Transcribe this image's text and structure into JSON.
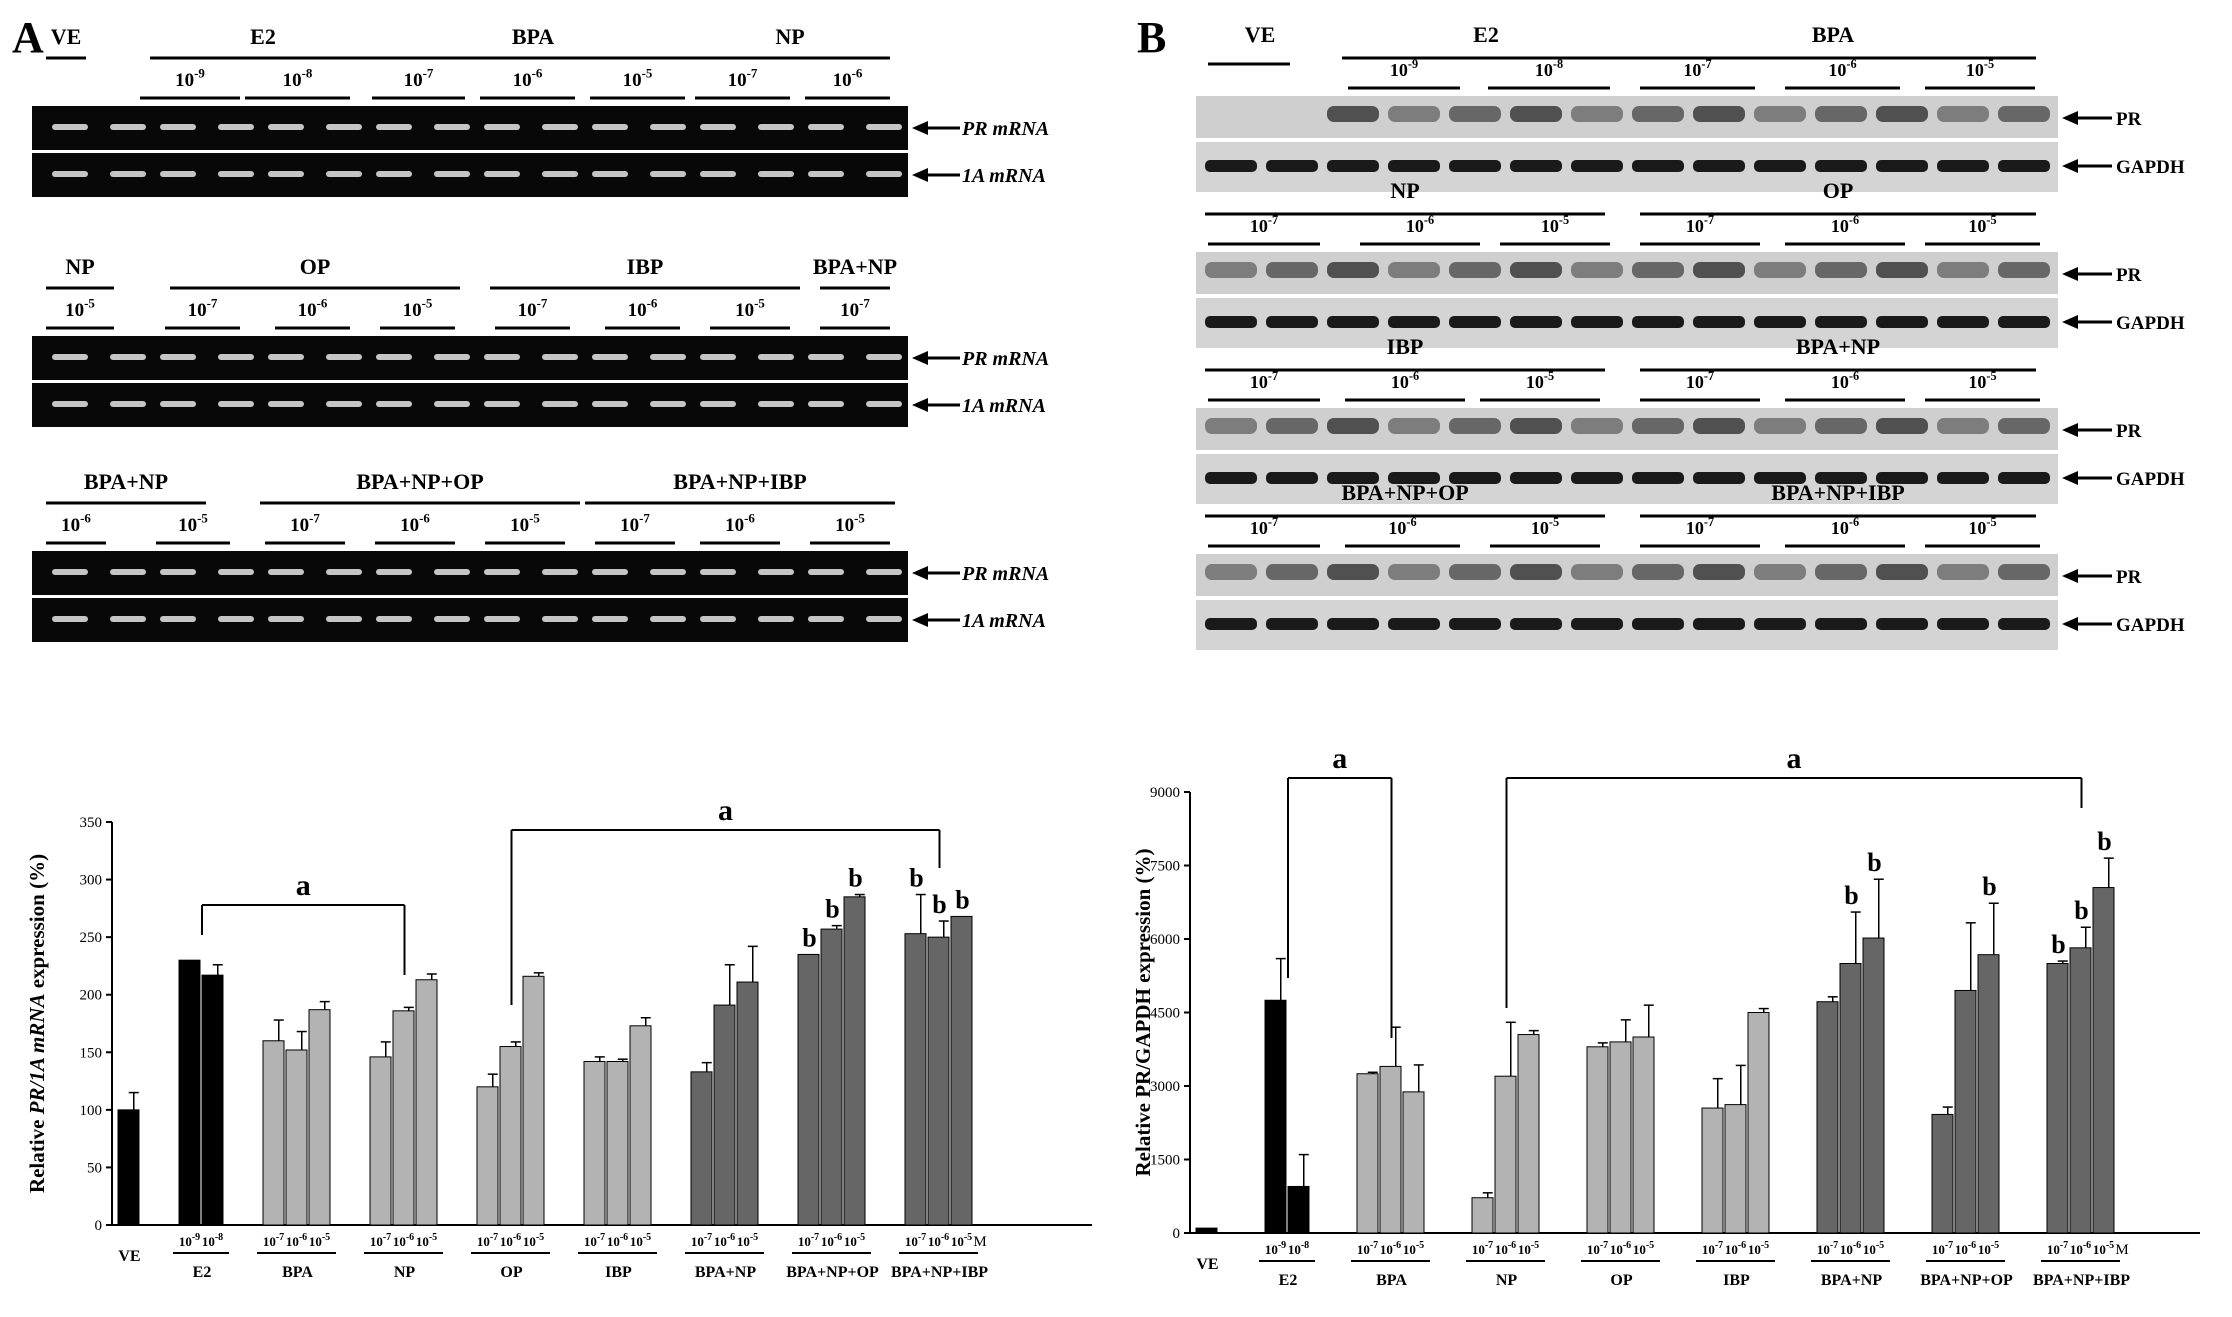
{
  "panels": {
    "A": {
      "letter": "A",
      "gels": [
        {
          "headers": [
            "VE",
            "E2",
            "BPA",
            "NP"
          ],
          "doses": [
            {
              "base": "10",
              "exp": "-9"
            },
            {
              "base": "10",
              "exp": "-8"
            },
            {
              "base": "10",
              "exp": "-7"
            },
            {
              "base": "10",
              "exp": "-6"
            },
            {
              "base": "10",
              "exp": "-5"
            },
            {
              "base": "10",
              "exp": "-7"
            },
            {
              "base": "10",
              "exp": "-6"
            }
          ],
          "labels": [
            "PR mRNA",
            "1A mRNA"
          ]
        },
        {
          "headers": [
            "NP",
            "OP",
            "IBP",
            "BPA+NP"
          ],
          "doses": [
            {
              "base": "10",
              "exp": "-5"
            },
            {
              "base": "10",
              "exp": "-7"
            },
            {
              "base": "10",
              "exp": "-6"
            },
            {
              "base": "10",
              "exp": "-5"
            },
            {
              "base": "10",
              "exp": "-7"
            },
            {
              "base": "10",
              "exp": "-6"
            },
            {
              "base": "10",
              "exp": "-5"
            },
            {
              "base": "10",
              "exp": "-7"
            }
          ],
          "labels": [
            "PR mRNA",
            "1A mRNA"
          ]
        },
        {
          "headers": [
            "BPA+NP",
            "BPA+NP+OP",
            "BPA+NP+IBP"
          ],
          "doses": [
            {
              "base": "10",
              "exp": "-6"
            },
            {
              "base": "10",
              "exp": "-5"
            },
            {
              "base": "10",
              "exp": "-7"
            },
            {
              "base": "10",
              "exp": "-6"
            },
            {
              "base": "10",
              "exp": "-5"
            },
            {
              "base": "10",
              "exp": "-7"
            },
            {
              "base": "10",
              "exp": "-6"
            },
            {
              "base": "10",
              "exp": "-5"
            }
          ],
          "labels": [
            "PR mRNA",
            "1A mRNA"
          ]
        }
      ]
    },
    "B": {
      "letter": "B",
      "blots": [
        {
          "headers": [
            "VE",
            "E2",
            "BPA"
          ],
          "doses": [
            {
              "base": "10",
              "exp": "-9"
            },
            {
              "base": "10",
              "exp": "-8"
            },
            {
              "base": "10",
              "exp": "-7"
            },
            {
              "base": "10",
              "exp": "-6"
            },
            {
              "base": "10",
              "exp": "-5"
            }
          ],
          "labels": [
            "PR",
            "GAPDH"
          ]
        },
        {
          "headers": [
            "NP",
            "OP"
          ],
          "doses": [
            {
              "base": "10",
              "exp": "-7"
            },
            {
              "base": "10",
              "exp": "-6"
            },
            {
              "base": "10",
              "exp": "-5"
            },
            {
              "base": "10",
              "exp": "-7"
            },
            {
              "base": "10",
              "exp": "-6"
            },
            {
              "base": "10",
              "exp": "-5"
            }
          ],
          "labels": [
            "PR",
            "GAPDH"
          ]
        },
        {
          "headers": [
            "IBP",
            "BPA+NP"
          ],
          "doses": [
            {
              "base": "10",
              "exp": "-7"
            },
            {
              "base": "10",
              "exp": "-6"
            },
            {
              "base": "10",
              "exp": "-5"
            },
            {
              "base": "10",
              "exp": "-7"
            },
            {
              "base": "10",
              "exp": "-6"
            },
            {
              "base": "10",
              "exp": "-5"
            }
          ],
          "labels": [
            "PR",
            "GAPDH"
          ]
        },
        {
          "headers": [
            "BPA+NP+OP",
            "BPA+NP+IBP"
          ],
          "doses": [
            {
              "base": "10",
              "exp": "-7"
            },
            {
              "base": "10",
              "exp": "-6"
            },
            {
              "base": "10",
              "exp": "-5"
            },
            {
              "base": "10",
              "exp": "-7"
            },
            {
              "base": "10",
              "exp": "-6"
            },
            {
              "base": "10",
              "exp": "-5"
            }
          ],
          "labels": [
            "PR",
            "GAPDH"
          ]
        }
      ]
    }
  },
  "chart_data": [
    {
      "type": "bar",
      "ylabel_parts": [
        "Relative ",
        "PR/1A mRNA",
        " expression (%)"
      ],
      "ylim": [
        0,
        350
      ],
      "yticks": [
        0,
        50,
        100,
        150,
        200,
        250,
        300,
        350
      ],
      "groups": [
        {
          "name": "VE",
          "bars": [
            {
              "label": "",
              "value": 100,
              "err": 15
            }
          ]
        },
        {
          "name": "E2",
          "bars": [
            {
              "label": "10-9",
              "value": 230,
              "err": 0
            },
            {
              "label": "10-8",
              "value": 217,
              "err": 9
            }
          ]
        },
        {
          "name": "BPA",
          "bars": [
            {
              "label": "10-7",
              "value": 160,
              "err": 18
            },
            {
              "label": "10-6",
              "value": 152,
              "err": 16
            },
            {
              "label": "10-5",
              "value": 187,
              "err": 7
            }
          ]
        },
        {
          "name": "NP",
          "bars": [
            {
              "label": "10-7",
              "value": 146,
              "err": 13
            },
            {
              "label": "10-6",
              "value": 186,
              "err": 3
            },
            {
              "label": "10-5",
              "value": 213,
              "err": 5
            }
          ]
        },
        {
          "name": "OP",
          "bars": [
            {
              "label": "10-7",
              "value": 120,
              "err": 11
            },
            {
              "label": "10-6",
              "value": 155,
              "err": 4
            },
            {
              "label": "10-5",
              "value": 216,
              "err": 3
            }
          ]
        },
        {
          "name": "IBP",
          "bars": [
            {
              "label": "10-7",
              "value": 142,
              "err": 4
            },
            {
              "label": "10-6",
              "value": 142,
              "err": 2
            },
            {
              "label": "10-5",
              "value": 173,
              "err": 7
            }
          ]
        },
        {
          "name": "BPA+NP",
          "bars": [
            {
              "label": "10-7",
              "value": 133,
              "err": 8
            },
            {
              "label": "10-6",
              "value": 191,
              "err": 35
            },
            {
              "label": "10-5",
              "value": 211,
              "err": 31
            }
          ]
        },
        {
          "name": "BPA+NP+OP",
          "bars": [
            {
              "label": "10-7",
              "value": 235,
              "err": 0,
              "sig": "b"
            },
            {
              "label": "10-6",
              "value": 257,
              "err": 3,
              "sig": "b"
            },
            {
              "label": "10-5",
              "value": 285,
              "err": 2,
              "sig": "b"
            }
          ]
        },
        {
          "name": "BPA+NP+IBP",
          "bars": [
            {
              "label": "10-7",
              "value": 253,
              "err": 34,
              "sig": "b"
            },
            {
              "label": "10-6",
              "value": 250,
              "err": 14,
              "sig": "b"
            },
            {
              "label": "10-5",
              "value": 268,
              "err": 0,
              "sig": "b"
            }
          ]
        }
      ],
      "last_label_suffix": "M",
      "brackets": [
        {
          "label": "a",
          "from_group": "E2",
          "to_group": "NP",
          "y": 275
        },
        {
          "label": "a",
          "from_group": "OP",
          "to_group": "BPA+NP+IBP",
          "y": 345
        }
      ]
    },
    {
      "type": "bar",
      "ylabel_parts": [
        "Relative PR/GAPDH expression (%)"
      ],
      "ylim": [
        0,
        9000
      ],
      "yticks": [
        0,
        1500,
        3000,
        4500,
        6000,
        7500,
        9000
      ],
      "groups": [
        {
          "name": "VE",
          "bars": [
            {
              "label": "",
              "value": 100,
              "err": 0
            }
          ]
        },
        {
          "name": "E2",
          "bars": [
            {
              "label": "10-9",
              "value": 4750,
              "err": 850
            },
            {
              "label": "10-8",
              "value": 950,
              "err": 650
            }
          ]
        },
        {
          "name": "BPA",
          "bars": [
            {
              "label": "10-7",
              "value": 3250,
              "err": 30
            },
            {
              "label": "10-6",
              "value": 3400,
              "err": 800
            },
            {
              "label": "10-5",
              "value": 2880,
              "err": 550
            }
          ]
        },
        {
          "name": "NP",
          "bars": [
            {
              "label": "10-7",
              "value": 720,
              "err": 100
            },
            {
              "label": "10-6",
              "value": 3200,
              "err": 1100
            },
            {
              "label": "10-5",
              "value": 4050,
              "err": 80
            }
          ]
        },
        {
          "name": "OP",
          "bars": [
            {
              "label": "10-7",
              "value": 3800,
              "err": 80
            },
            {
              "label": "10-6",
              "value": 3900,
              "err": 450
            },
            {
              "label": "10-5",
              "value": 4000,
              "err": 650
            }
          ]
        },
        {
          "name": "IBP",
          "bars": [
            {
              "label": "10-7",
              "value": 2550,
              "err": 600
            },
            {
              "label": "10-6",
              "value": 2620,
              "err": 800
            },
            {
              "label": "10-5",
              "value": 4500,
              "err": 80
            }
          ]
        },
        {
          "name": "BPA+NP",
          "bars": [
            {
              "label": "10-7",
              "value": 4720,
              "err": 100
            },
            {
              "label": "10-6",
              "value": 5500,
              "err": 1050,
              "sig": "b"
            },
            {
              "label": "10-5",
              "value": 6020,
              "err": 1200,
              "sig": "b"
            }
          ]
        },
        {
          "name": "BPA+NP+OP",
          "bars": [
            {
              "label": "10-7",
              "value": 2420,
              "err": 150
            },
            {
              "label": "10-6",
              "value": 4950,
              "err": 1380
            },
            {
              "label": "10-5",
              "value": 5680,
              "err": 1050,
              "sig": "b"
            }
          ]
        },
        {
          "name": "BPA+NP+IBP",
          "bars": [
            {
              "label": "10-7",
              "value": 5500,
              "err": 50,
              "sig": "b"
            },
            {
              "label": "10-6",
              "value": 5820,
              "err": 420,
              "sig": "b"
            },
            {
              "label": "10-5",
              "value": 7050,
              "err": 600,
              "sig": "b"
            }
          ]
        }
      ],
      "last_label_suffix": "M",
      "brackets": [
        {
          "label": "a",
          "from_group": "E2",
          "to_group": "BPA",
          "y": 9200
        },
        {
          "label": "a",
          "from_group": "NP",
          "to_group": "BPA+NP+IBP",
          "y": 9200
        }
      ]
    }
  ]
}
